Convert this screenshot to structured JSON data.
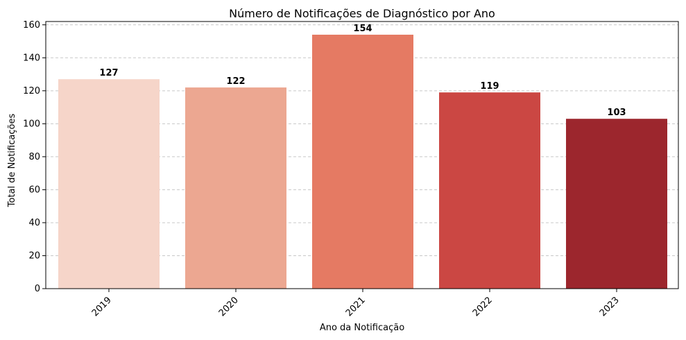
{
  "chart_data": {
    "type": "bar",
    "title": "Número de Notificações de Diagnóstico por Ano",
    "xlabel": "Ano da Notificação",
    "ylabel": "Total de Notificações",
    "categories": [
      "2019",
      "2020",
      "2021",
      "2022",
      "2023"
    ],
    "values": [
      127,
      122,
      154,
      119,
      103
    ],
    "bar_colors": [
      "#f6d5c9",
      "#eca791",
      "#e57a63",
      "#cb4743",
      "#9c262d"
    ],
    "ylim": [
      0,
      162
    ],
    "yticks": [
      0,
      20,
      40,
      60,
      80,
      100,
      120,
      140,
      160
    ],
    "grid": {
      "axis": "y",
      "style": "dashed",
      "color": "#c8c8c8"
    },
    "xtick_rotation_deg": 45,
    "data_labels": true
  }
}
